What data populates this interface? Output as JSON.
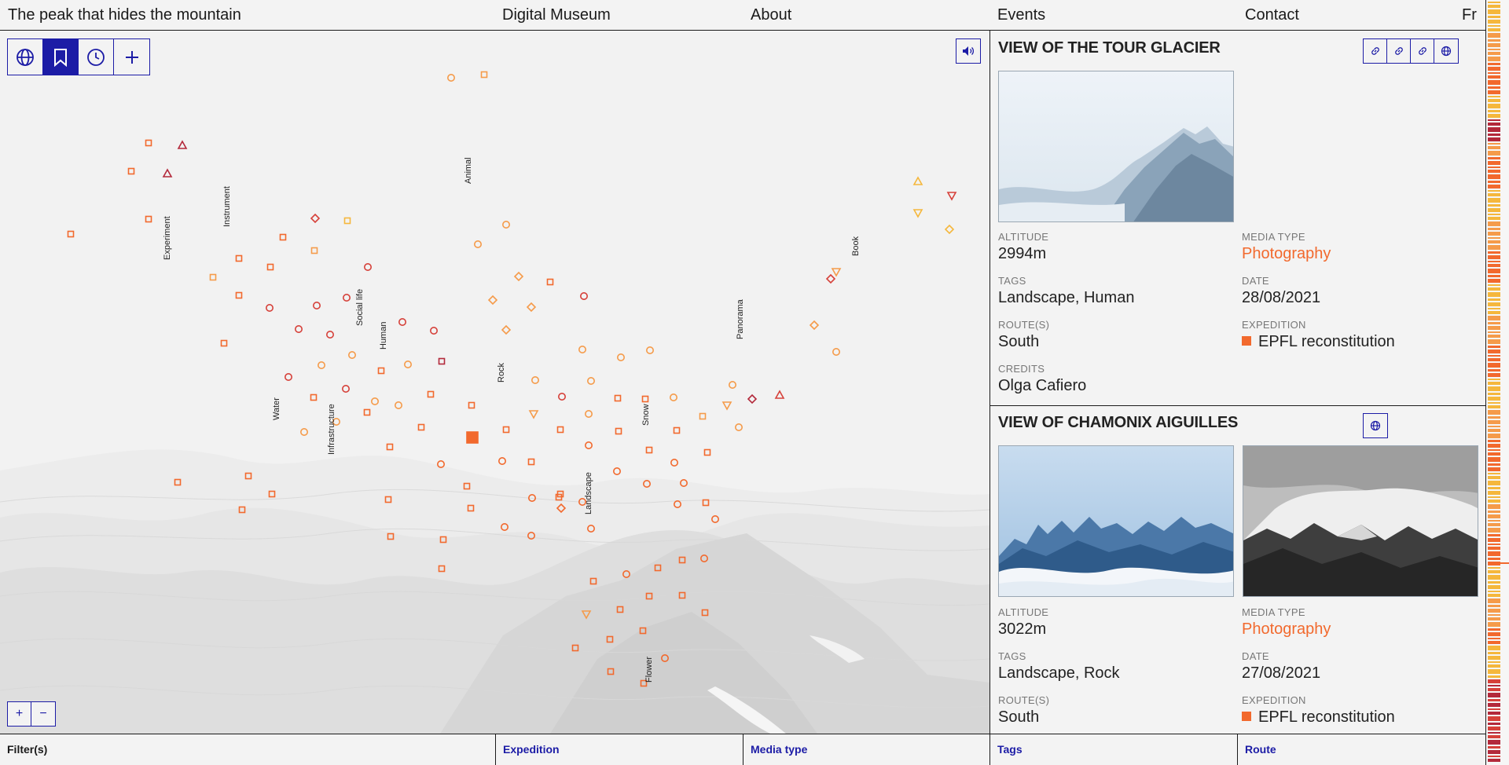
{
  "nav": {
    "title": "The peak that hides the mountain",
    "museum": "Digital Museum",
    "about": "About",
    "events": "Events",
    "contact": "Contact",
    "lang": "Fr"
  },
  "toolbar": {
    "tools": [
      "globe-icon",
      "bookmark-icon",
      "clock-icon",
      "plus-icon"
    ],
    "active": "bookmark-icon"
  },
  "zoom": {
    "in": "+",
    "out": "−"
  },
  "map": {
    "tag_labels": [
      "Experiment",
      "Instrument",
      "Animal",
      "Social life",
      "Human",
      "Water",
      "Infrastructure",
      "Rock",
      "Snow",
      "Landscape",
      "Panorama",
      "Book",
      "Flower"
    ]
  },
  "colors": {
    "accent": "#f2692d",
    "ui_blue": "#1c1ca6",
    "dark_red": "#b3293b",
    "red": "#d6413a",
    "orange": "#f2692d",
    "light_orange": "#f59b4a",
    "yellow": "#f5b73c"
  },
  "cards": [
    {
      "title": "VIEW OF THE TOUR GLACIER",
      "icons": [
        "link-icon",
        "link-icon",
        "link-icon",
        "globe-icon"
      ],
      "altitude_label": "ALTITUDE",
      "altitude": "2994m",
      "media_type_label": "MEDIA TYPE",
      "media_type": "Photography",
      "tags_label": "TAGS",
      "tags": "Landscape, Human",
      "date_label": "DATE",
      "date": "28/08/2021",
      "routes_label": "ROUTE(S)",
      "routes": "South",
      "expedition_label": "EXPEDITION",
      "expedition": "EPFL reconstitution",
      "credits_label": "CREDITS",
      "credits": "Olga Cafiero"
    },
    {
      "title": "VIEW OF CHAMONIX AIGUILLES",
      "icons": [
        "globe-icon"
      ],
      "altitude_label": "ALTITUDE",
      "altitude": "3022m",
      "media_type_label": "MEDIA TYPE",
      "media_type": "Photography",
      "tags_label": "TAGS",
      "tags": "Landscape, Rock",
      "date_label": "DATE",
      "date": "27/08/2021",
      "routes_label": "ROUTE(S)",
      "routes": "South",
      "expedition_label": "EXPEDITION",
      "expedition": "EPFL reconstitution"
    }
  ],
  "filters": {
    "label": "Filter(s)",
    "expedition": "Expedition",
    "media_type": "Media type",
    "tags": "Tags",
    "route": "Route"
  }
}
